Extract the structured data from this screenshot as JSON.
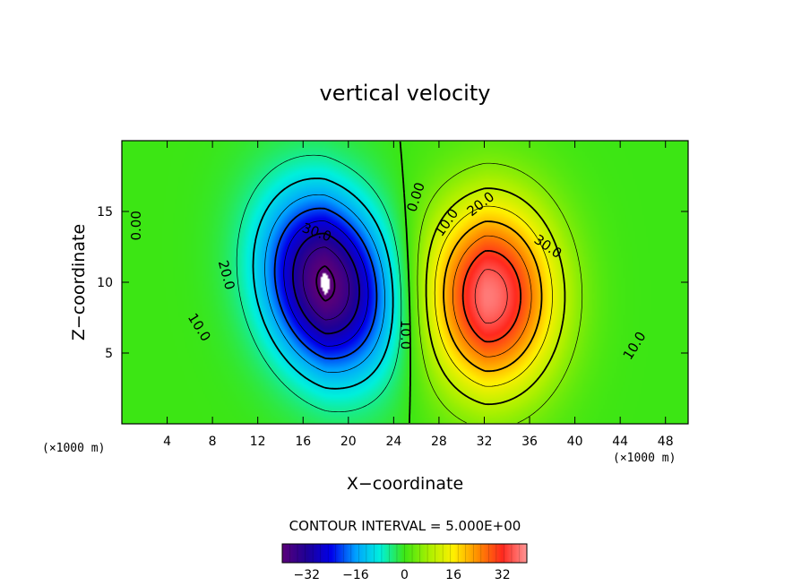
{
  "chart_data": {
    "type": "heatmap",
    "title": "vertical velocity",
    "xlabel": "X−coordinate",
    "ylabel": "Z−coordinate",
    "x_unit_left": "(×1000 m)",
    "x_unit_right": "(×1000 m)",
    "xlim": [
      0,
      50
    ],
    "ylim": [
      0,
      20
    ],
    "xticks": [
      4,
      8,
      12,
      16,
      20,
      24,
      28,
      32,
      36,
      40,
      44,
      48
    ],
    "yticks": [
      5,
      10,
      15
    ],
    "colorbar": {
      "range": [
        -40,
        40
      ],
      "ticks": [
        {
          "value": -32,
          "label": "−32"
        },
        {
          "value": -16,
          "label": "−16"
        },
        {
          "value": 0,
          "label": "0"
        },
        {
          "value": 16,
          "label": "16"
        },
        {
          "value": 32,
          "label": "32"
        }
      ]
    },
    "contour_interval_text": "CONTOUR INTERVAL =  5.000E+00",
    "contour_interval": 5.0,
    "field": {
      "downdraft": {
        "center": [
          17.5,
          10.0
        ],
        "peak": -42
      },
      "updraft": {
        "center": [
          33.5,
          9.0
        ],
        "peak": 40
      }
    },
    "contour_labels": [
      {
        "text": "0.00",
        "x": 1.3,
        "z": 14.0,
        "angle": -90
      },
      {
        "text": "0.00",
        "x": 26.0,
        "z": 16.0,
        "angle": -72
      },
      {
        "text": "10.0",
        "x": 6.8,
        "z": 6.8,
        "angle": 58
      },
      {
        "text": "20.0",
        "x": 9.2,
        "z": 10.5,
        "angle": 75
      },
      {
        "text": "30.0",
        "x": 17.2,
        "z": 13.5,
        "angle": 20
      },
      {
        "text": "10.0",
        "x": 25.0,
        "z": 6.3,
        "angle": 90
      },
      {
        "text": "10.0",
        "x": 28.7,
        "z": 14.2,
        "angle": -55
      },
      {
        "text": "20.0",
        "x": 31.7,
        "z": 15.5,
        "angle": -38
      },
      {
        "text": "30.0",
        "x": 37.6,
        "z": 12.5,
        "angle": 35
      },
      {
        "text": "10.0",
        "x": 45.3,
        "z": 5.5,
        "angle": -58
      }
    ]
  }
}
